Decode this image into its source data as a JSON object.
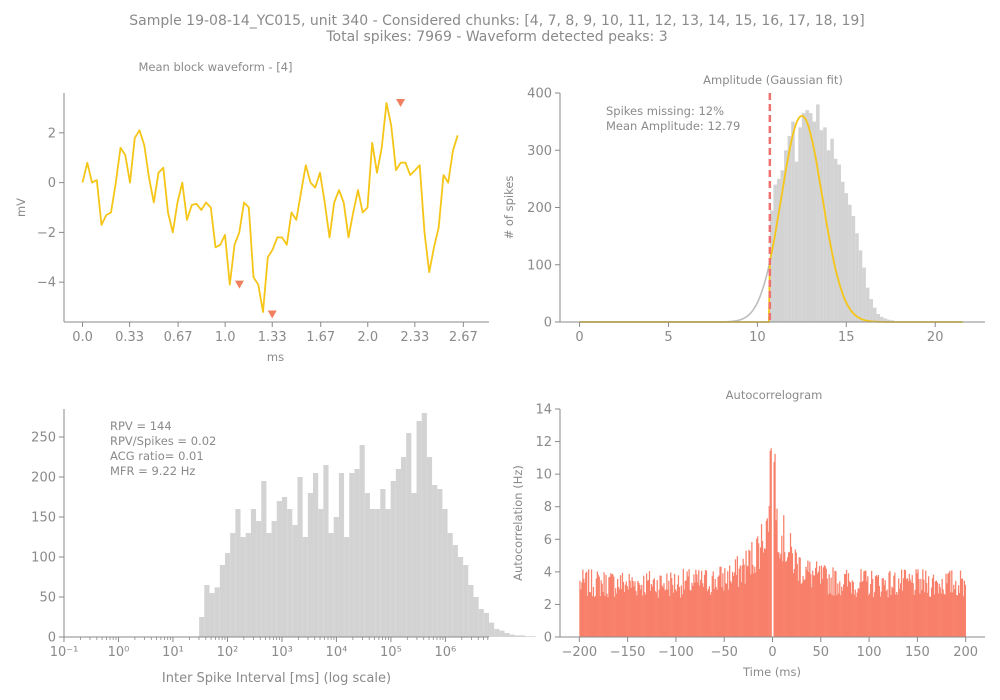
{
  "suptitle": {
    "line1": "Sample 19-08-14_YC015, unit 340 - Considered chunks: [4, 7, 8, 9, 10, 11, 12, 13, 14, 15, 16, 17, 18, 19]",
    "line2": "Total spikes: 7969 - Waveform detected peaks: 3"
  },
  "colors": {
    "text": "#8a8a8a",
    "axis": "#8a8a8a",
    "waveform": "#f5c518",
    "peak_marker": "#f08060",
    "hist_gray": "#d3d3d3",
    "fit_line": "#f5c518",
    "gaussian_full": "#bdbdbd",
    "threshold": "#f07070",
    "acg": "#f8806a"
  },
  "chart_data": [
    {
      "id": "waveform",
      "type": "line",
      "title": "Mean block waveform - [4]",
      "xlabel": "ms",
      "ylabel": "mV",
      "xlim": [
        -0.13,
        2.85
      ],
      "ylim": [
        -5.6,
        3.6
      ],
      "xticks": [
        0.0,
        0.33,
        0.67,
        1.0,
        1.33,
        1.67,
        2.0,
        2.33,
        2.67
      ],
      "xtick_labels": [
        "0.0",
        "0.33",
        "0.67",
        "1.0",
        "1.33",
        "1.67",
        "2.0",
        "2.33",
        "2.67"
      ],
      "yticks": [
        2,
        0,
        -2,
        -4
      ],
      "ytick_labels": [
        "2",
        "0",
        "−2",
        "−4"
      ],
      "dt": 0.0333,
      "y": [
        0.0,
        0.8,
        0.0,
        0.1,
        -1.7,
        -1.3,
        -1.2,
        0.0,
        1.4,
        1.1,
        0.0,
        1.8,
        2.1,
        1.5,
        0.2,
        -0.8,
        0.4,
        0.6,
        -1.2,
        -2.0,
        -0.8,
        0.0,
        -1.5,
        -0.9,
        -0.85,
        -1.1,
        -0.8,
        -1.0,
        -2.6,
        -2.5,
        -2.1,
        -4.1,
        -2.5,
        -2.0,
        -0.8,
        -1.0,
        -3.8,
        -4.1,
        -5.2,
        -3.0,
        -2.7,
        -2.2,
        -2.2,
        -2.5,
        -1.2,
        -1.5,
        -0.4,
        0.7,
        0.0,
        -0.2,
        0.4,
        -0.8,
        -2.2,
        -0.8,
        -0.3,
        -0.8,
        -2.2,
        -1.2,
        -0.3,
        -1.2,
        -1.0,
        1.6,
        0.4,
        1.4,
        3.2,
        2.3,
        0.5,
        0.8,
        0.8,
        0.3,
        0.5,
        0.7,
        -2.0,
        -3.6,
        -2.6,
        -1.8,
        0.3,
        0.0,
        1.3,
        1.9
      ],
      "peaks": [
        {
          "x": 1.1,
          "y": -4.1
        },
        {
          "x": 1.33,
          "y": -5.3
        },
        {
          "x": 2.23,
          "y": 3.2
        }
      ]
    },
    {
      "id": "amplitude",
      "type": "bar",
      "title": "Amplitude (Gaussian fit)",
      "ylabel": "# of spikes",
      "xlim": [
        -1.1,
        22.8
      ],
      "ylim": [
        0,
        400
      ],
      "xticks": [
        0,
        5,
        10,
        15,
        20
      ],
      "xtick_labels": [
        "0",
        "5",
        "10",
        "15",
        "20"
      ],
      "yticks": [
        0,
        100,
        200,
        300,
        400
      ],
      "ytick_labels": [
        "0",
        "100",
        "200",
        "300",
        "400"
      ],
      "bin_edges_start": 10.7,
      "bin_width": 0.2,
      "counts": [
        195,
        240,
        250,
        265,
        300,
        325,
        350,
        280,
        340,
        365,
        370,
        365,
        350,
        380,
        335,
        340,
        300,
        320,
        285,
        275,
        245,
        225,
        205,
        185,
        155,
        125,
        95,
        60,
        40,
        25,
        14,
        9,
        6,
        4,
        3
      ],
      "fit": {
        "mu": 12.5,
        "sigma": 1.15,
        "amp": 360
      },
      "threshold_x": 10.7,
      "fit_range": [
        0,
        21.6
      ],
      "annotations": [
        "Spikes missing: 12%",
        "Mean Amplitude: 12.79"
      ]
    },
    {
      "id": "isi",
      "type": "bar",
      "title": "",
      "xlabel": "Inter Spike Interval [ms] (log scale)",
      "xscale": "log",
      "xlim_log10": [
        -1,
        6.8
      ],
      "ylim": [
        0,
        285
      ],
      "xticks_log10": [
        -1,
        0,
        1,
        2,
        3,
        4,
        5,
        6
      ],
      "xtick_labels": [
        "10⁻¹",
        "10⁰",
        "10¹",
        "10²",
        "10³",
        "10⁴",
        "10⁵",
        "10⁶"
      ],
      "yticks": [
        0,
        50,
        100,
        150,
        200,
        250
      ],
      "ytick_labels": [
        "0",
        "50",
        "100",
        "150",
        "200",
        "250"
      ],
      "bin_log10_start": 1.48,
      "bin_log10_width": 0.095,
      "counts": [
        25,
        65,
        55,
        62,
        90,
        105,
        130,
        160,
        125,
        130,
        160,
        145,
        195,
        130,
        145,
        170,
        175,
        160,
        140,
        200,
        125,
        180,
        205,
        160,
        215,
        130,
        150,
        205,
        125,
        205,
        210,
        240,
        180,
        160,
        160,
        185,
        160,
        195,
        210,
        225,
        255,
        180,
        270,
        280,
        225,
        190,
        185,
        160,
        130,
        115,
        100,
        90,
        65,
        50,
        35,
        30,
        18,
        10,
        8,
        5,
        3,
        2,
        2,
        1,
        1
      ],
      "annotations": [
        "RPV = 144",
        "RPV/Spikes = 0.02",
        "ACG ratio= 0.01",
        "MFR = 9.22 Hz"
      ]
    },
    {
      "id": "acg",
      "type": "bar",
      "title": "Autocorrelogram",
      "xlabel": "Time (ms)",
      "ylabel": "Autocorrelation (Hz)",
      "xlim": [
        -220,
        220
      ],
      "ylim": [
        0,
        14
      ],
      "xticks": [
        -200,
        -150,
        -100,
        -50,
        0,
        50,
        100,
        150,
        200
      ],
      "xtick_labels": [
        "−200",
        "−150",
        "−100",
        "−50",
        "0",
        "50",
        "100",
        "150",
        "200"
      ],
      "yticks": [
        0,
        2,
        4,
        6,
        8,
        10,
        12,
        14
      ],
      "ytick_labels": [
        "0",
        "2",
        "4",
        "6",
        "8",
        "10",
        "12",
        "14"
      ],
      "bin_ms": 1,
      "baseline_hz": 3.2,
      "peak_hz": 11.6,
      "center_gap_ms": 1
    }
  ]
}
